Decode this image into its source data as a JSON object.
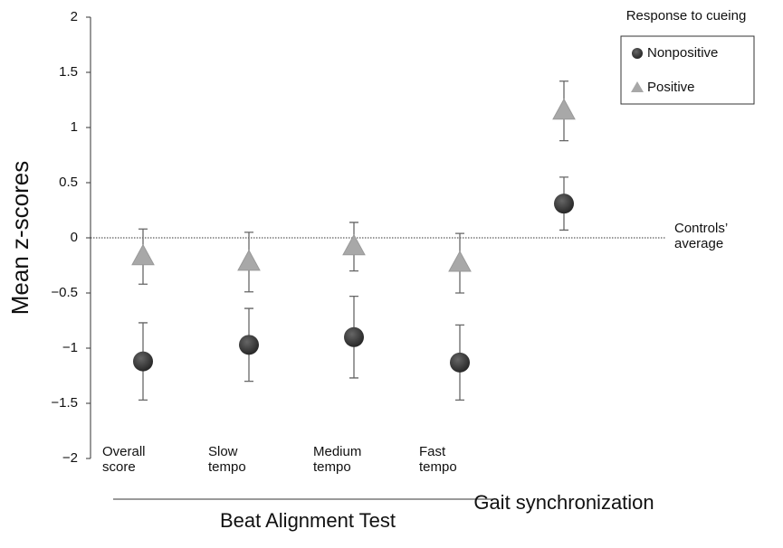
{
  "chart_data": {
    "type": "errorbar",
    "y_label": "Mean z-scores",
    "categories": [
      "Overall score",
      "Slow tempo",
      "Medium tempo",
      "Fast tempo",
      "Gait synchronization"
    ],
    "ylim": [
      -2,
      2
    ],
    "yticks": [
      -2,
      -1.5,
      -1,
      -0.5,
      0,
      0.5,
      1,
      1.5,
      2
    ],
    "reference_line": 0,
    "reference_label": "Controls’ average",
    "group_label": "Beat Alignment Test",
    "legend_title": "Response to cueing",
    "legend": "upper right",
    "series": [
      {
        "name": "Nonpositive",
        "color": "#333333",
        "marker": "circle",
        "values": [
          -1.12,
          -0.97,
          -0.9,
          -1.13,
          0.31
        ],
        "errors": [
          0.35,
          0.33,
          0.37,
          0.34,
          0.24
        ]
      },
      {
        "name": "Positive",
        "color": "#a8a8a8",
        "marker": "triangle",
        "values": [
          -0.17,
          -0.22,
          -0.08,
          -0.23,
          1.15
        ],
        "errors": [
          0.25,
          0.27,
          0.22,
          0.27,
          0.27
        ]
      }
    ]
  }
}
